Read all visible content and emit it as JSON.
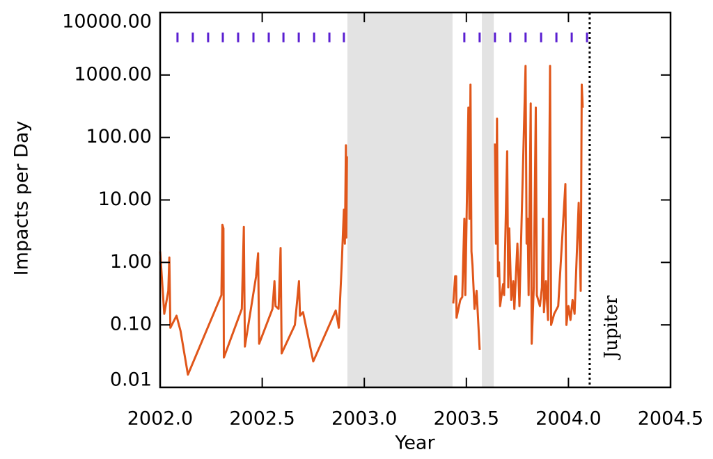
{
  "chart_data": {
    "type": "line",
    "xlabel": "Year",
    "ylabel": "Impacts per Day",
    "log_y": true,
    "xlim": [
      2002.0,
      2004.5
    ],
    "ylim": [
      0.01,
      10000
    ],
    "xticks": [
      {
        "value": 2002.0,
        "label": "2002.0"
      },
      {
        "value": 2002.5,
        "label": "2002.5"
      },
      {
        "value": 2003.0,
        "label": "2003.0"
      },
      {
        "value": 2003.5,
        "label": "2003.5"
      },
      {
        "value": 2004.0,
        "label": "2004.0"
      },
      {
        "value": 2004.5,
        "label": "2004.5"
      }
    ],
    "yticks": [
      {
        "value": 0.01,
        "label": "0.01"
      },
      {
        "value": 0.1,
        "label": "0.10"
      },
      {
        "value": 1,
        "label": "1.00"
      },
      {
        "value": 10,
        "label": "10.00"
      },
      {
        "value": 100,
        "label": "100.00"
      },
      {
        "value": 1000,
        "label": "1000.00"
      },
      {
        "value": 10000,
        "label": "10000.00"
      }
    ],
    "color": "#e0561a",
    "x": [
      2002.0,
      2002.02,
      2002.04,
      2002.045,
      2002.05,
      2002.08,
      2002.1,
      2002.136,
      2002.3,
      2002.305,
      2002.31,
      2002.312,
      2002.4,
      2002.41,
      2002.415,
      2002.47,
      2002.48,
      2002.485,
      2002.55,
      2002.56,
      2002.565,
      2002.58,
      2002.59,
      2002.595,
      2002.66,
      2002.68,
      2002.685,
      2002.7,
      2002.75,
      2002.86,
      2002.875,
      2002.89,
      2002.9,
      2002.905,
      2002.91,
      2002.912,
      2002.915,
      null,
      2003.436,
      2003.445,
      2003.45,
      2003.452,
      2003.47,
      2003.48,
      2003.49,
      2003.495,
      2003.51,
      2003.515,
      2003.52,
      2003.525,
      2003.53,
      2003.54,
      2003.55,
      2003.565,
      null,
      2003.64,
      2003.645,
      2003.65,
      2003.655,
      2003.66,
      2003.665,
      2003.68,
      2003.685,
      2003.7,
      2003.705,
      2003.71,
      2003.72,
      2003.73,
      2003.735,
      2003.75,
      2003.76,
      2003.79,
      2003.795,
      2003.8,
      2003.805,
      2003.815,
      2003.82,
      2003.83,
      2003.84,
      2003.845,
      2003.86,
      2003.87,
      2003.875,
      2003.88,
      2003.89,
      2003.9,
      2003.91,
      2003.915,
      2003.93,
      2003.95,
      2003.985,
      2003.99,
      2004.0,
      2004.01,
      2004.02,
      2004.03,
      2004.05,
      2004.06,
      2004.065,
      2004.07
    ],
    "values": [
      1.5,
      0.15,
      0.35,
      1.2,
      0.09,
      0.14,
      0.08,
      0.016,
      0.3,
      4.0,
      3.5,
      0.03,
      0.18,
      3.7,
      0.045,
      0.6,
      1.4,
      0.05,
      0.18,
      0.5,
      0.2,
      0.18,
      1.7,
      0.035,
      0.1,
      0.5,
      0.14,
      0.16,
      0.026,
      0.17,
      0.09,
      1.0,
      7,
      2,
      75,
      2.5,
      50,
      null,
      0.22,
      0.6,
      0.6,
      0.13,
      0.25,
      0.28,
      5,
      0.3,
      300,
      5,
      700,
      1.5,
      0.9,
      0.18,
      0.35,
      0.04,
      null,
      80,
      2,
      200,
      0.6,
      1.0,
      0.2,
      0.45,
      0.3,
      60,
      0.4,
      3.5,
      0.25,
      0.5,
      0.18,
      2,
      0.2,
      1400,
      2,
      5,
      0.3,
      350,
      0.05,
      0.4,
      300,
      0.3,
      0.2,
      0.4,
      5,
      0.16,
      0.5,
      0.12,
      1400,
      0.1,
      0.15,
      0.2,
      18,
      0.1,
      0.2,
      0.12,
      0.25,
      0.15,
      9,
      0.35,
      700,
      300
    ],
    "shaded_spans": [
      [
        2002.917,
        2003.432
      ],
      [
        2003.576,
        2003.634
      ]
    ],
    "shade_color": "#e3e3e3",
    "vline": {
      "x": 2004.104,
      "label": "Jupiter"
    },
    "markers": {
      "x": [
        2002.085,
        2002.16,
        2002.235,
        2002.307,
        2002.382,
        2002.457,
        2002.532,
        2002.604,
        2002.679,
        2002.754,
        2002.829,
        2002.9,
        2003.49,
        2003.565,
        2003.64,
        2003.715,
        2003.79,
        2003.866,
        2003.941,
        2004.016,
        2004.091
      ],
      "y": 4000,
      "color": "#5a1fd1"
    }
  }
}
